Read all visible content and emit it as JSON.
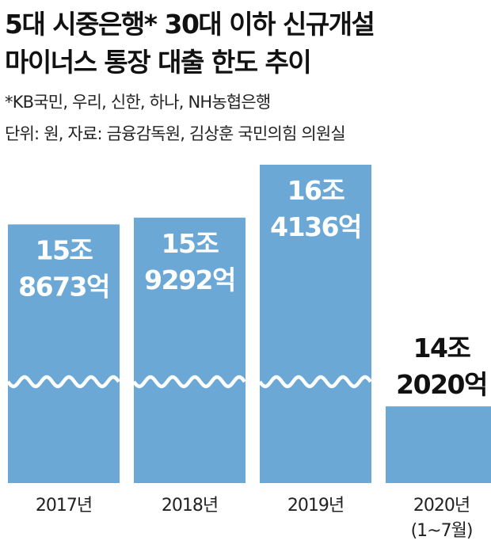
{
  "header": {
    "title_line1": "5대 시중은행* 30대 이하 신규개설",
    "title_line2": "마이너스 통장 대출 한도 추이",
    "footnote": "*KB국민, 우리, 신한, 하나, NH농협은행",
    "source": "단위: 원, 자료: 금융감독원, 김상훈 국민의힘 의원실"
  },
  "chart_data": {
    "type": "bar",
    "title": "5대 시중은행* 30대 이하 신규개설 마이너스 통장 대출 한도 추이",
    "unit": "원",
    "categories": [
      [
        "2017년"
      ],
      [
        "2018년"
      ],
      [
        "2019년"
      ],
      [
        "2020년",
        "(1~7월)"
      ]
    ],
    "values": [
      158673,
      159292,
      164136,
      142020
    ],
    "value_unit": "억원",
    "data_labels": [
      [
        "15조",
        "8673억"
      ],
      [
        "15조",
        "9292억"
      ],
      [
        "16조",
        "4136억"
      ],
      [
        "14조",
        "2020억"
      ]
    ],
    "axis_break": true,
    "gridlines": false,
    "bar_color": "#6ba8d6"
  }
}
